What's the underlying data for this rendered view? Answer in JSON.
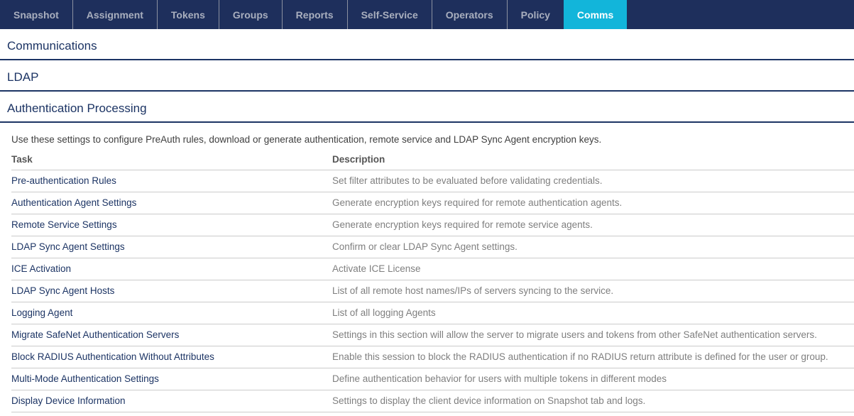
{
  "navbar": {
    "tabs": [
      {
        "label": "Snapshot",
        "active": false
      },
      {
        "label": "Assignment",
        "active": false
      },
      {
        "label": "Tokens",
        "active": false
      },
      {
        "label": "Groups",
        "active": false
      },
      {
        "label": "Reports",
        "active": false
      },
      {
        "label": "Self-Service",
        "active": false
      },
      {
        "label": "Operators",
        "active": false
      },
      {
        "label": "Policy",
        "active": false
      },
      {
        "label": "Comms",
        "active": true
      }
    ]
  },
  "sections": [
    {
      "title": "Communications"
    },
    {
      "title": "LDAP"
    },
    {
      "title": "Authentication Processing"
    }
  ],
  "auth_processing": {
    "intro": "Use these settings to configure PreAuth rules, download or generate authentication, remote service and LDAP Sync Agent encryption keys.",
    "columns": {
      "task": "Task",
      "description": "Description"
    },
    "rows": [
      {
        "task": "Pre-authentication Rules",
        "description": "Set filter attributes to be evaluated before validating credentials."
      },
      {
        "task": "Authentication Agent Settings",
        "description": "Generate encryption keys required for remote authentication agents."
      },
      {
        "task": "Remote Service Settings",
        "description": "Generate encryption keys required for remote service agents."
      },
      {
        "task": "LDAP Sync Agent Settings",
        "description": "Confirm or clear LDAP Sync Agent settings."
      },
      {
        "task": "ICE Activation",
        "description": "Activate ICE License"
      },
      {
        "task": "LDAP Sync Agent Hosts",
        "description": "List of all remote host names/IPs of servers syncing to the service."
      },
      {
        "task": "Logging Agent",
        "description": "List of all logging Agents"
      },
      {
        "task": "Migrate SafeNet Authentication Servers",
        "description": "Settings in this section will allow the server to migrate users and tokens from other SafeNet authentication servers."
      },
      {
        "task": "Block RADIUS Authentication Without Attributes",
        "description": "Enable this session to block the RADIUS authentication if no RADIUS return attribute is defined for the user or group."
      },
      {
        "task": "Multi-Mode Authentication Settings",
        "description": "Define authentication behavior for users with multiple tokens in different modes"
      },
      {
        "task": "Display Device Information",
        "description": "Settings to display the client device information on Snapshot tab and logs."
      }
    ]
  },
  "colors": {
    "navbar_bg": "#1E2F5C",
    "active_tab_bg": "#12B5DA",
    "active_tab_text": "#FFFFFF",
    "tab_text": "#A9AFBE",
    "heading_navy": "#1C3464",
    "task_link": "#1C3464",
    "description_text": "#7F7F7F",
    "row_divider": "#CBCBCB"
  }
}
